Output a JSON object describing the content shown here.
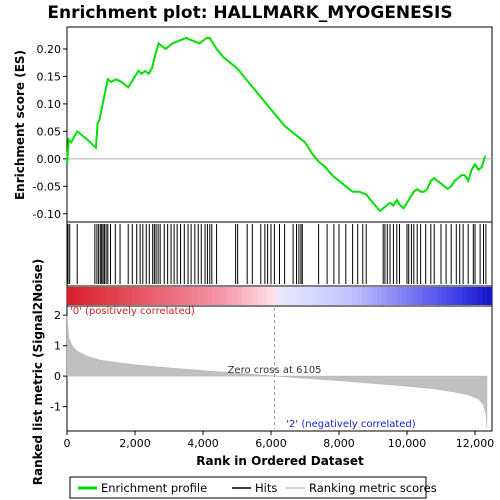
{
  "chart_data": {
    "type": "line",
    "title": "Enrichment plot: HALLMARK_MYOGENESIS",
    "top_panel": {
      "ylabel": "Enrichment score (ES)",
      "ylim": [
        -0.115,
        0.24
      ],
      "yticks": [
        "0.20",
        "0.15",
        "0.10",
        "0.05",
        "0.00",
        "-0.05",
        "-0.10"
      ],
      "ytick_values": [
        0.2,
        0.15,
        0.1,
        0.05,
        0.0,
        -0.05,
        -0.1
      ],
      "line_color": "#00e000",
      "series": [
        {
          "name": "Enrichment profile",
          "x": [
            0,
            50,
            120,
            300,
            600,
            850,
            900,
            950,
            1000,
            1050,
            1100,
            1150,
            1200,
            1300,
            1450,
            1600,
            1800,
            1950,
            2100,
            2200,
            2300,
            2400,
            2500,
            2600,
            2700,
            2900,
            3100,
            3300,
            3500,
            3700,
            3900,
            4100,
            4200,
            4400,
            4600,
            4800,
            5000,
            5200,
            5400,
            5600,
            5800,
            6000,
            6200,
            6400,
            6600,
            6800,
            7000,
            7200,
            7400,
            7600,
            7800,
            8000,
            8200,
            8400,
            8600,
            8800,
            9000,
            9200,
            9300,
            9400,
            9500,
            9600,
            9700,
            9800,
            9900,
            10000,
            10100,
            10200,
            10300,
            10400,
            10500,
            10600,
            10700,
            10800,
            10900,
            11000,
            11100,
            11200,
            11300,
            11400,
            11500,
            11600,
            11700,
            11800,
            11900,
            12000,
            12100,
            12200,
            12300
          ],
          "y": [
            -0.01,
            0.035,
            0.03,
            0.05,
            0.035,
            0.02,
            0.065,
            0.07,
            0.085,
            0.1,
            0.115,
            0.13,
            0.145,
            0.14,
            0.145,
            0.14,
            0.13,
            0.145,
            0.16,
            0.155,
            0.16,
            0.155,
            0.165,
            0.19,
            0.21,
            0.2,
            0.21,
            0.215,
            0.22,
            0.215,
            0.21,
            0.22,
            0.22,
            0.2,
            0.185,
            0.175,
            0.165,
            0.15,
            0.135,
            0.12,
            0.105,
            0.09,
            0.075,
            0.06,
            0.05,
            0.04,
            0.03,
            0.01,
            -0.005,
            -0.015,
            -0.03,
            -0.04,
            -0.05,
            -0.06,
            -0.06,
            -0.065,
            -0.08,
            -0.095,
            -0.09,
            -0.085,
            -0.08,
            -0.085,
            -0.075,
            -0.085,
            -0.09,
            -0.08,
            -0.07,
            -0.06,
            -0.055,
            -0.06,
            -0.06,
            -0.055,
            -0.04,
            -0.035,
            -0.04,
            -0.045,
            -0.05,
            -0.055,
            -0.05,
            -0.04,
            -0.035,
            -0.03,
            -0.03,
            -0.04,
            -0.02,
            -0.01,
            -0.02,
            -0.015,
            0.005
          ]
        }
      ]
    },
    "hits": {
      "name": "Hits",
      "positions": [
        30,
        80,
        300,
        820,
        880,
        930,
        980,
        1020,
        1060,
        1100,
        1150,
        1200,
        1280,
        1420,
        1560,
        1800,
        1920,
        2050,
        2150,
        2230,
        2330,
        2420,
        2520,
        2570,
        2620,
        2680,
        2740,
        2860,
        2960,
        3060,
        3150,
        3240,
        3340,
        3450,
        3560,
        3650,
        3760,
        3860,
        3950,
        4060,
        4130,
        4200,
        4260,
        4400,
        4960,
        5020,
        5300,
        5450,
        5700,
        5820,
        5900,
        6000,
        6100,
        6250,
        6400,
        6650,
        6750,
        6820,
        6880,
        6920,
        7400,
        7650,
        7850,
        8000,
        8200,
        8400,
        8550,
        8700,
        8800,
        9300,
        9350,
        9420,
        9500,
        9600,
        9700,
        9780,
        10000,
        10050,
        10130,
        10200,
        10300,
        10400,
        10550,
        10700,
        10800,
        11000,
        11150,
        11300,
        11450,
        11550,
        11650,
        11800,
        11950,
        12000,
        12150,
        12250,
        12320
      ]
    },
    "ranking_panel": {
      "ylabel": "Ranked list metric (Signal2Noise)",
      "xlabel": "Rank in Ordered Dataset",
      "xlim": [
        0,
        12500
      ],
      "xticks": [
        "0",
        "2,000",
        "4,000",
        "6,000",
        "8,000",
        "10,000",
        "12,000"
      ],
      "xtick_values": [
        0,
        2000,
        4000,
        6000,
        8000,
        10000,
        12000
      ],
      "ylim": [
        -1.8,
        2.3
      ],
      "yticks": [
        "2",
        "1",
        "0",
        "-1"
      ],
      "ytick_values": [
        2,
        1,
        0,
        -1
      ],
      "metric_x": [
        0,
        50,
        150,
        300,
        600,
        1000,
        1500,
        2000,
        3000,
        4000,
        5000,
        6105,
        7000,
        8000,
        9000,
        10000,
        10800,
        11400,
        11800,
        12100,
        12250,
        12330,
        12350
      ],
      "metric_y": [
        2.0,
        1.25,
        1.0,
        0.82,
        0.65,
        0.52,
        0.44,
        0.37,
        0.27,
        0.18,
        0.1,
        0.0,
        -0.07,
        -0.15,
        -0.24,
        -0.33,
        -0.42,
        -0.52,
        -0.62,
        -0.75,
        -0.95,
        -1.3,
        -1.7
      ],
      "zero_cross_label": "Zero cross at 6105",
      "zero_cross_x": 6105,
      "positive_label": "'0' (positively correlated)",
      "negative_label": "'2' (negatively correlated)",
      "positive_color": "#d02020",
      "negative_color": "#1a1ad0"
    },
    "legend": [
      {
        "label": "Enrichment profile",
        "color": "#00e000"
      },
      {
        "label": "Hits",
        "color": "#000000"
      },
      {
        "label": "Ranking metric scores",
        "color": "#c0c0c0"
      }
    ]
  }
}
